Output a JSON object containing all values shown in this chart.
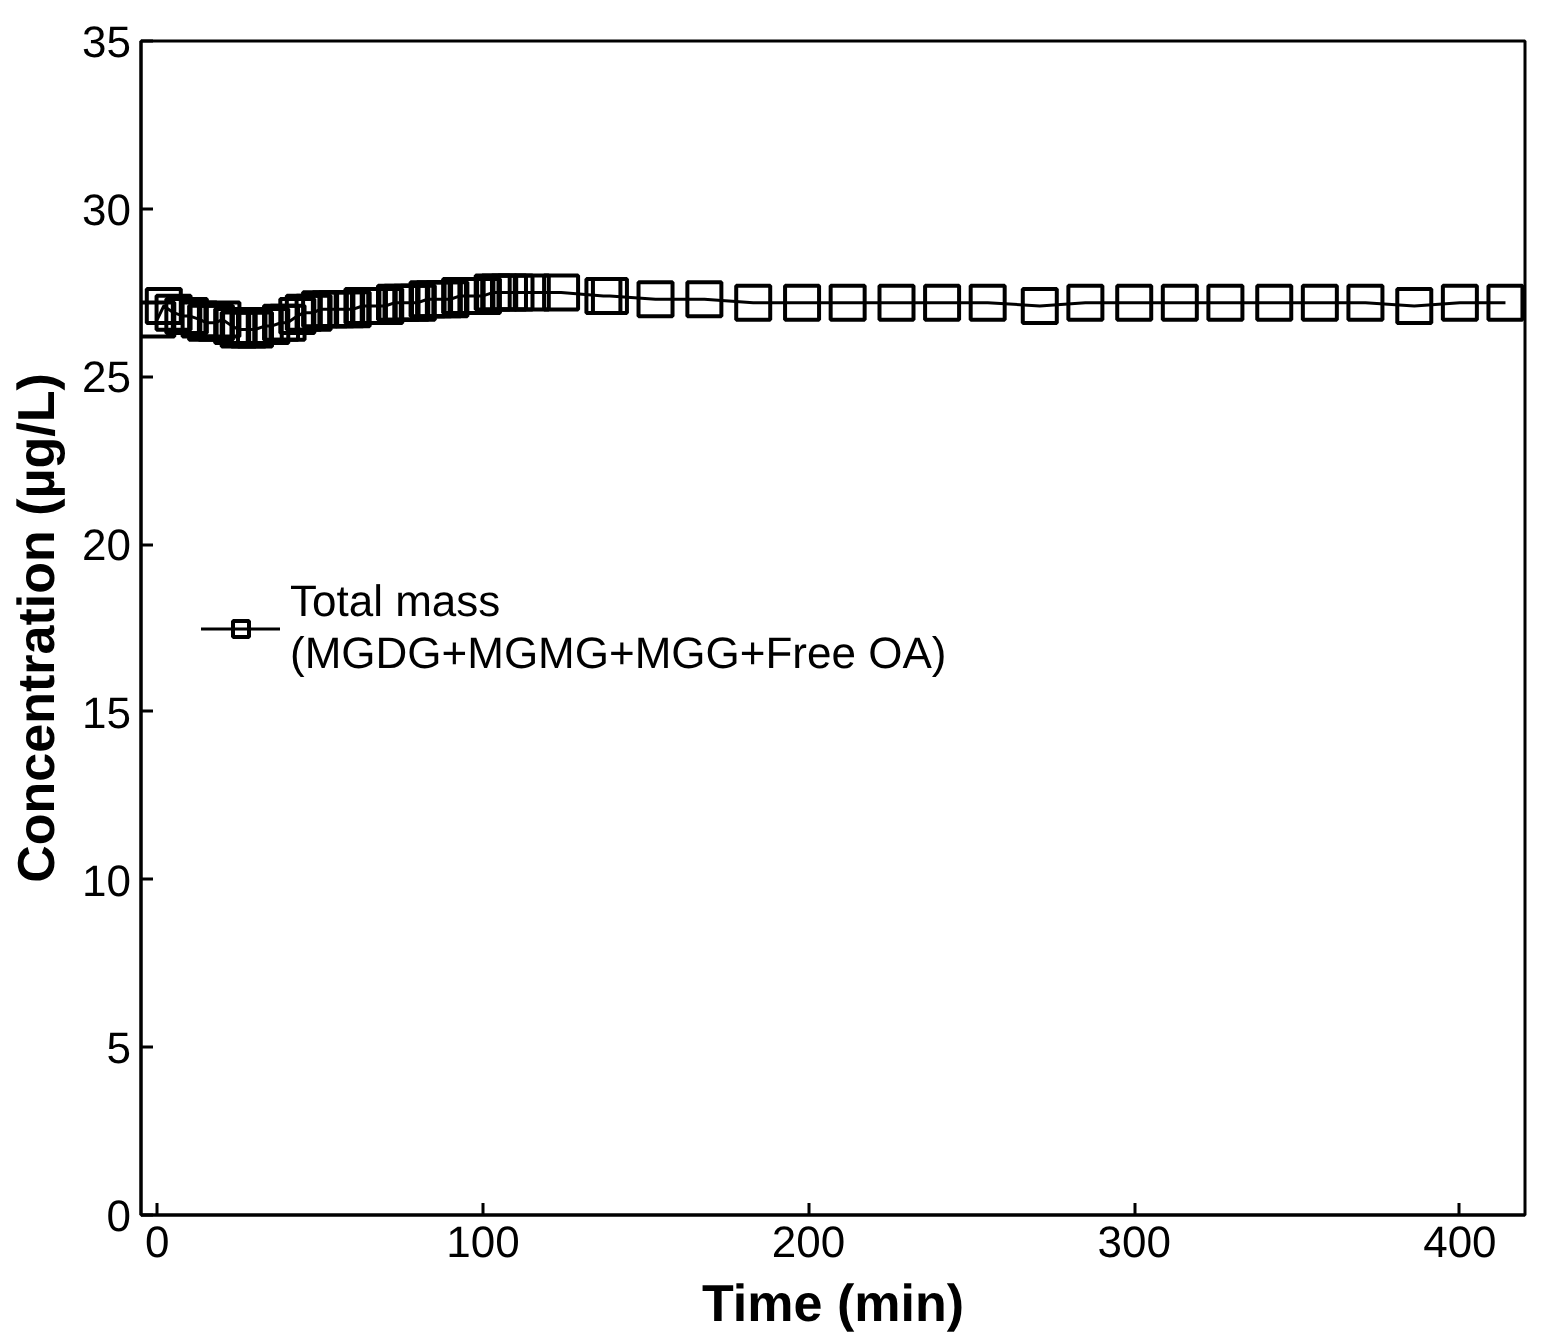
{
  "chart_data": {
    "type": "line",
    "xlabel": "Time (min)",
    "ylabel": "Concentration (µg/L)",
    "xlim": [
      -5,
      420
    ],
    "ylim": [
      0,
      35
    ],
    "xticks": [
      0,
      100,
      200,
      300,
      400
    ],
    "yticks": [
      0,
      5,
      10,
      15,
      20,
      25,
      30,
      35
    ],
    "grid": false,
    "legend": "left",
    "marker": "square",
    "series": [
      {
        "name": "Total mass\n(MGDG+MGMG+MGG+Free OA)",
        "color": "#000000",
        "x": [
          0,
          2,
          5,
          8,
          10,
          13,
          15,
          18,
          20,
          23,
          25,
          28,
          30,
          33,
          35,
          38,
          40,
          43,
          45,
          48,
          50,
          53,
          55,
          58,
          60,
          63,
          65,
          68,
          70,
          73,
          75,
          78,
          80,
          83,
          85,
          88,
          90,
          93,
          95,
          98,
          100,
          103,
          105,
          108,
          110,
          115,
          124,
          137,
          139,
          153,
          168,
          183,
          198,
          212,
          227,
          241,
          255,
          271,
          285,
          300,
          314,
          328,
          343,
          357,
          371,
          386,
          400,
          414
        ],
        "values": [
          26.7,
          27.1,
          26.9,
          26.8,
          26.8,
          26.7,
          26.6,
          26.6,
          26.7,
          26.5,
          26.4,
          26.4,
          26.4,
          26.5,
          26.5,
          26.6,
          26.6,
          26.8,
          26.9,
          26.9,
          27.0,
          27.0,
          27.0,
          27.0,
          27.0,
          27.1,
          27.1,
          27.1,
          27.1,
          27.2,
          27.2,
          27.2,
          27.2,
          27.3,
          27.3,
          27.3,
          27.3,
          27.4,
          27.4,
          27.4,
          27.4,
          27.5,
          27.5,
          27.5,
          27.5,
          27.5,
          27.5,
          27.4,
          27.4,
          27.3,
          27.3,
          27.2,
          27.2,
          27.2,
          27.2,
          27.2,
          27.2,
          27.1,
          27.2,
          27.2,
          27.2,
          27.2,
          27.2,
          27.2,
          27.2,
          27.1,
          27.2,
          27.2
        ]
      }
    ]
  }
}
